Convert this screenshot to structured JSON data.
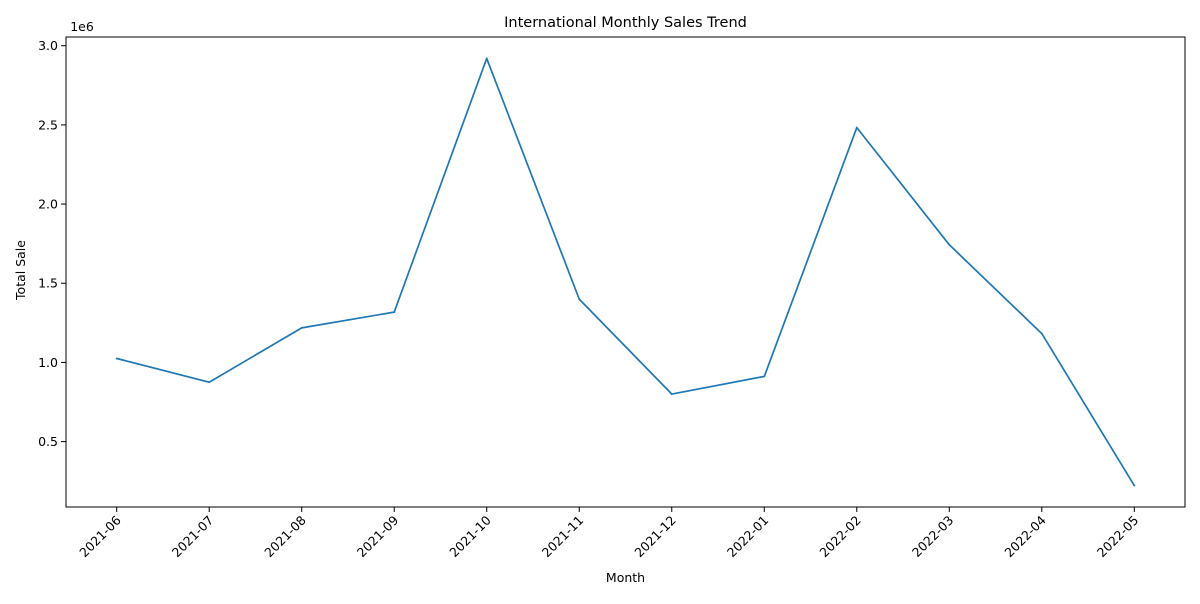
{
  "chart_data": {
    "type": "line",
    "title": "International Monthly Sales Trend",
    "xlabel": "Month",
    "ylabel": "Total Sale",
    "y_offset_label": "1e6",
    "y_scale_factor": 1000000,
    "x": [
      "2021-06",
      "2021-07",
      "2021-08",
      "2021-09",
      "2021-10",
      "2021-11",
      "2021-12",
      "2022-01",
      "2022-02",
      "2022-03",
      "2022-04",
      "2022-05"
    ],
    "series": [
      {
        "color": "#1f77b4",
        "values": [
          1025000,
          875000,
          1218000,
          1318000,
          2920000,
          1400000,
          800000,
          912000,
          2483000,
          1743000,
          1182000,
          222000
        ]
      }
    ],
    "yticks": [
      0.5,
      1.0,
      1.5,
      2.0,
      2.5,
      3.0
    ],
    "ytick_labels": [
      "0.5",
      "1.0",
      "1.5",
      "2.0",
      "2.5",
      "3.0"
    ],
    "ylim": [
      87000,
      3055000
    ],
    "grid": false,
    "legend": "none",
    "x_tick_rotation": 45
  }
}
